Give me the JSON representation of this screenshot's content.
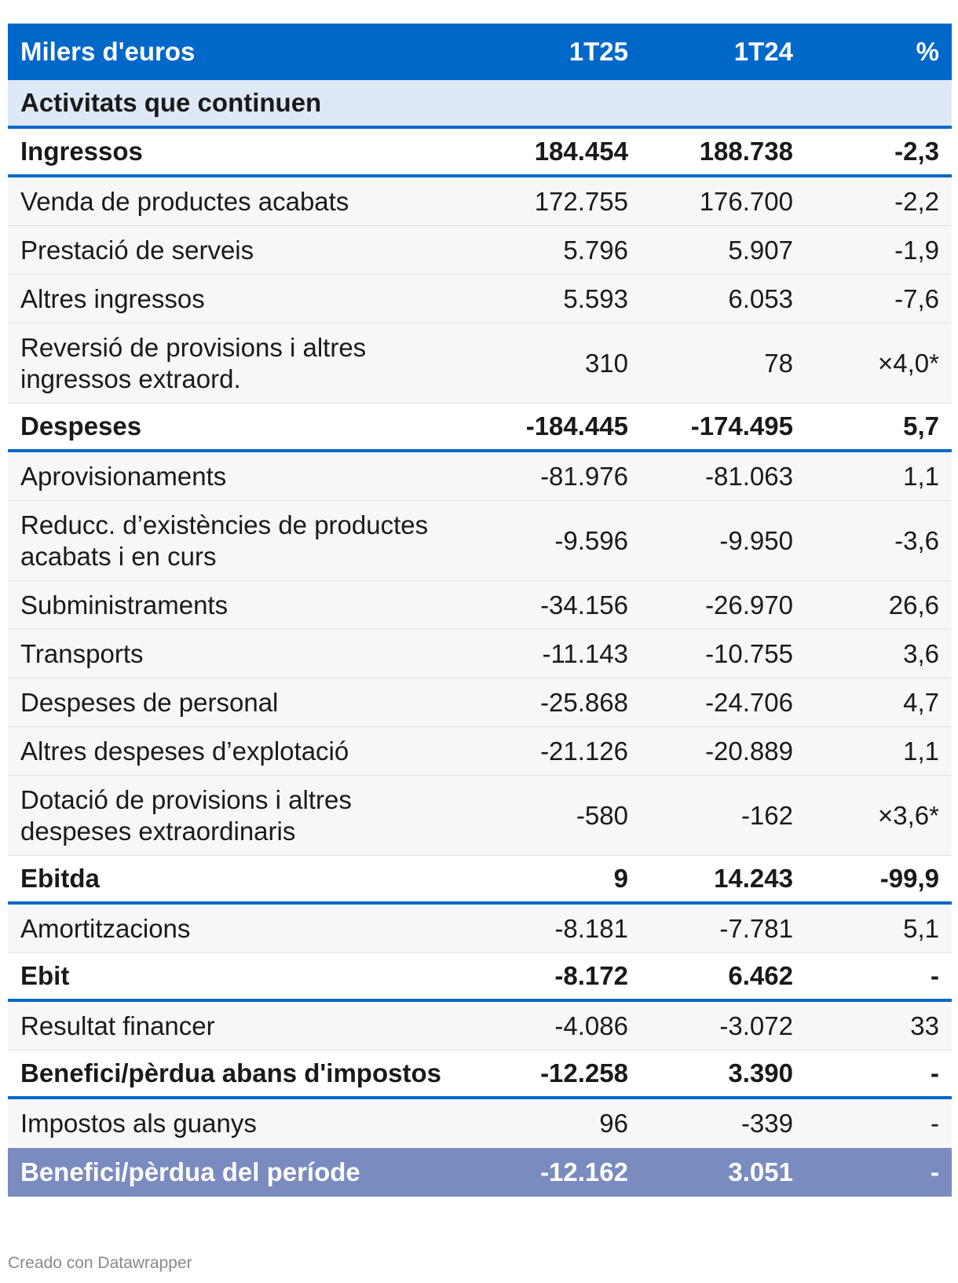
{
  "header": {
    "label": "Milers d'euros",
    "col_a": "1T25",
    "col_b": "1T24",
    "col_pct": "%"
  },
  "section_title": "Activitats que continuen",
  "rows": [
    {
      "label": "Ingressos",
      "a": "184.454",
      "b": "188.738",
      "pct": "-2,3"
    },
    {
      "label": "Venda de productes acabats",
      "a": "172.755",
      "b": "176.700",
      "pct": "-2,2"
    },
    {
      "label": "Prestació de serveis",
      "a": "5.796",
      "b": "5.907",
      "pct": "-1,9"
    },
    {
      "label": "Altres ingressos",
      "a": "5.593",
      "b": "6.053",
      "pct": "-7,6"
    },
    {
      "label_line1": "Reversió de provisions i altres",
      "label_line2": "ingressos extraord.",
      "a": "310",
      "b": "78",
      "pct": "×4,0*"
    },
    {
      "label": "Despeses",
      "a": "-184.445",
      "b": "-174.495",
      "pct": "5,7"
    },
    {
      "label": "Aprovisionaments",
      "a": "-81.976",
      "b": "-81.063",
      "pct": "1,1"
    },
    {
      "label_line1": "Reducc. d’existències de productes",
      "label_line2": "acabats i en curs",
      "a": "-9.596",
      "b": "-9.950",
      "pct": "-3,6"
    },
    {
      "label": "Subministraments",
      "a": "-34.156",
      "b": "-26.970",
      "pct": "26,6"
    },
    {
      "label": "Transports",
      "a": "-11.143",
      "b": "-10.755",
      "pct": "3,6"
    },
    {
      "label": "Despeses de personal",
      "a": "-25.868",
      "b": "-24.706",
      "pct": "4,7"
    },
    {
      "label": "Altres despeses d’explotació",
      "a": "-21.126",
      "b": "-20.889",
      "pct": "1,1"
    },
    {
      "label_line1": "Dotació de provisions i altres",
      "label_line2": "despeses extraordinaris",
      "a": "-580",
      "b": "-162",
      "pct": "×3,6*"
    },
    {
      "label": "Ebitda",
      "a": "9",
      "b": "14.243",
      "pct": "-99,9"
    },
    {
      "label": "Amortitzacions",
      "a": "-8.181",
      "b": "-7.781",
      "pct": "5,1"
    },
    {
      "label": "Ebit",
      "a": "-8.172",
      "b": "6.462",
      "pct": "-"
    },
    {
      "label": "Resultat financer",
      "a": "-4.086",
      "b": "-3.072",
      "pct": "33"
    },
    {
      "label": "Benefici/pèrdua abans d'impostos",
      "a": "-12.258",
      "b": "3.390",
      "pct": "-"
    },
    {
      "label": "Impostos als guanys",
      "a": "96",
      "b": "-339",
      "pct": "-"
    },
    {
      "label": "Benefici/pèrdua del període",
      "a": "-12.162",
      "b": "3.051",
      "pct": "-"
    }
  ],
  "colors": {
    "header_bg": "#0068c9",
    "section_bg": "#dde9f6",
    "row_bg": "#f7f7f7",
    "final_bg": "#7a8bbf"
  },
  "credit": "Creado con Datawrapper"
}
